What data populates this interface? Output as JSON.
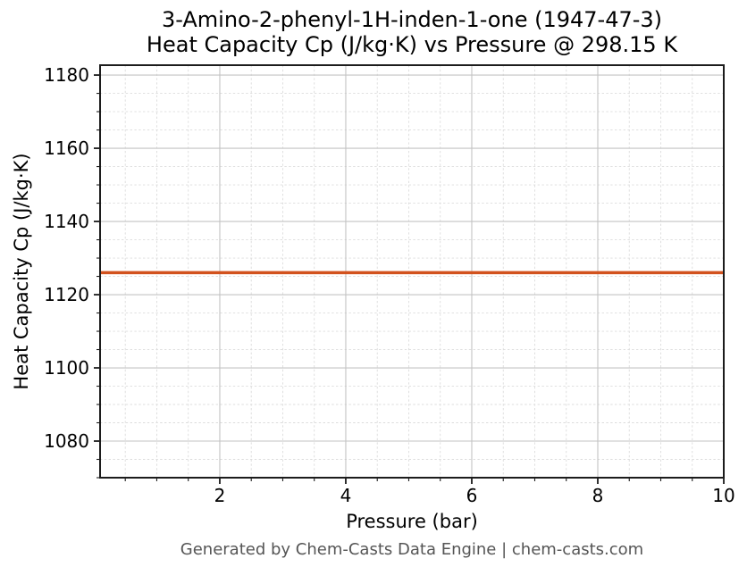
{
  "title": {
    "line1": "3-Amino-2-phenyl-1H-inden-1-one (1947-47-3)",
    "line2": "Heat Capacity Cp (J/kg·K) vs Pressure @ 298.15 K"
  },
  "footer": "Generated by Chem-Casts Data Engine | chem-casts.com",
  "chart_data": {
    "type": "line",
    "title": "3-Amino-2-phenyl-1H-inden-1-one (1947-47-3)",
    "subtitle": "Heat Capacity Cp (J/kg·K) vs Pressure @ 298.15 K",
    "compound": "3-Amino-2-phenyl-1H-inden-1-one",
    "cas_number": "1947-47-3",
    "temperature_label": "298.15 K",
    "xlabel": "Pressure (bar)",
    "ylabel": "Heat Capacity Cp (J/kg·K)",
    "series": [
      {
        "name": "Heat Capacity Cp",
        "x": [
          0.1,
          10.0
        ],
        "values": [
          1126,
          1126
        ],
        "color": "#d2521e",
        "line_width": 3.5
      }
    ],
    "xlim": [
      0.1,
      10.0
    ],
    "ylim": [
      1070.0,
      1182.7
    ],
    "x_major_ticks": [
      2,
      4,
      6,
      8,
      10
    ],
    "x_minor_step": 0.5,
    "y_major_ticks": [
      1080,
      1100,
      1120,
      1140,
      1160,
      1180
    ],
    "y_minor_step": 5,
    "grid": "major-solid, minor-dashed",
    "legend_position": "none",
    "colors": {
      "major_grid": "#c3c3c3",
      "minor_grid": "#dcdcdc",
      "spine": "#1c1c1c",
      "tick": "#1c1c1c",
      "text": "#000000",
      "footer_text": "#555555",
      "background": "#ffffff"
    }
  }
}
